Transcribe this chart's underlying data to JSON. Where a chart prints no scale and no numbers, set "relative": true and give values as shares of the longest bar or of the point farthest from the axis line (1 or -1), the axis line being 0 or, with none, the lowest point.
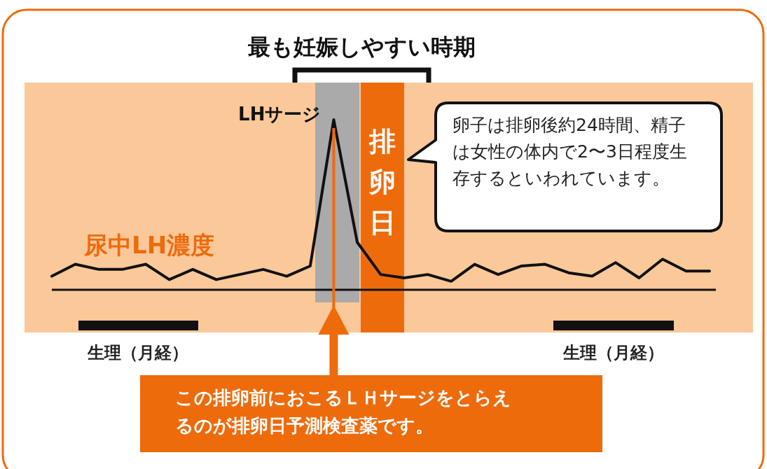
{
  "chart_data": {
    "type": "line",
    "relative": true,
    "categories": [
      null,
      null,
      null,
      null,
      null,
      null,
      null,
      null,
      null,
      null,
      null,
      null,
      null,
      null,
      null,
      null,
      null,
      null,
      null,
      null,
      null,
      null,
      null,
      null,
      null,
      null,
      null,
      null,
      null
    ],
    "series": [
      {
        "name": "尿中LH濃度",
        "color": "#111111",
        "values": [
          0.08,
          0.15,
          0.12,
          0.12,
          0.15,
          0.06,
          0.12,
          0.06,
          0.09,
          0.12,
          0.08,
          0.14,
          1,
          0.28,
          0.09,
          0.07,
          0.09,
          0.05,
          0.15,
          0.09,
          0.14,
          0.15,
          0.1,
          0.08,
          0.16,
          0.07,
          0.18,
          0.11,
          0.11
        ]
      }
    ],
    "annotations": [
      "最も妊娠しやすい時期",
      "LHサージ",
      "排卵日",
      "卵子は排卵後約24時間、精子は女性の体内で2〜3日程度生存するといわれています。",
      "生理（月経）",
      "生理（月経）",
      "この排卵前におこるＬＨサージをとらえるのが排卵日予測検査薬です。"
    ]
  }
}
